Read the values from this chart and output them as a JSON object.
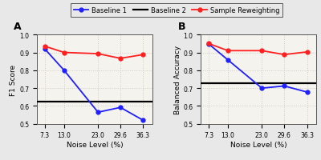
{
  "x_labels": [
    "7.3",
    "13.0",
    "23.0",
    "29.6",
    "36.3"
  ],
  "x_values": [
    7.3,
    13.0,
    23.0,
    29.6,
    36.3
  ],
  "panel_A": {
    "baseline1": [
      0.92,
      0.8,
      0.565,
      0.592,
      0.52
    ],
    "baseline2": 0.625,
    "sample_reweighting": [
      0.935,
      0.9,
      0.893,
      0.867,
      0.888
    ],
    "ylabel": "F1 Score",
    "ylim": [
      0.5,
      1.0
    ],
    "yticks": [
      0.5,
      0.6,
      0.7,
      0.8,
      0.9,
      1.0
    ],
    "label": "A"
  },
  "panel_B": {
    "baseline1": [
      0.948,
      0.858,
      0.7,
      0.712,
      0.678
    ],
    "baseline2": 0.727,
    "sample_reweighting": [
      0.95,
      0.91,
      0.91,
      0.888,
      0.903
    ],
    "ylabel": "Balanced Accuracy",
    "ylim": [
      0.5,
      1.0
    ],
    "yticks": [
      0.5,
      0.6,
      0.7,
      0.8,
      0.9,
      1.0
    ],
    "label": "B"
  },
  "legend": {
    "baseline1_label": "Baseline 1",
    "baseline2_label": "Baseline 2",
    "sample_reweighting_label": "Sample Reweighting"
  },
  "xlabel": "Noise Level (%)",
  "blue_color": "#1f1fff",
  "red_color": "#ff1f1f",
  "black_color": "#000000",
  "fig_facecolor": "#e8e8e8",
  "ax_facecolor": "#f5f3ee",
  "grid_color": "#d0ccc5"
}
